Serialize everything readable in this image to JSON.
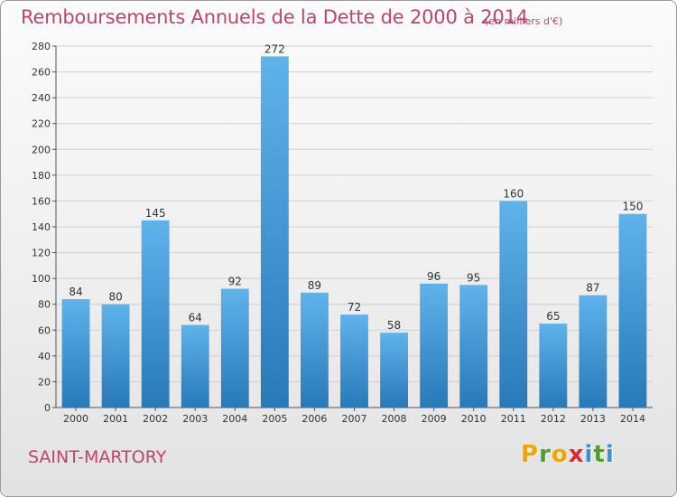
{
  "header": {
    "title": "Remboursements Annuels de la Dette de 2000 à 2014",
    "subtitle": "(en milliers d'€)"
  },
  "footer": {
    "town": "SAINT-MARTORY",
    "brand_letters": [
      "P",
      "r",
      "o",
      "x",
      "i",
      "t",
      "i"
    ]
  },
  "colors": {
    "title": "#c0436d",
    "bar_top": "#5fb3eb",
    "bar_bottom": "#2879b8",
    "grid": "#cfcfcf",
    "brand": [
      "#f0a500",
      "#4aa02c",
      "#f0a500",
      "#e3262e",
      "#3f8fd2",
      "#4aa02c",
      "#3f8fd2"
    ]
  },
  "chart_data": {
    "type": "bar",
    "categories": [
      "2000",
      "2001",
      "2002",
      "2003",
      "2004",
      "2005",
      "2006",
      "2007",
      "2008",
      "2009",
      "2010",
      "2011",
      "2012",
      "2013",
      "2014"
    ],
    "values": [
      84,
      80,
      145,
      64,
      92,
      272,
      89,
      72,
      58,
      96,
      95,
      160,
      65,
      87,
      150
    ],
    "ylim": [
      0,
      280
    ],
    "yticks": [
      0,
      20,
      40,
      60,
      80,
      100,
      120,
      140,
      160,
      180,
      200,
      220,
      240,
      260,
      280
    ],
    "grid": true,
    "legend": "none"
  }
}
